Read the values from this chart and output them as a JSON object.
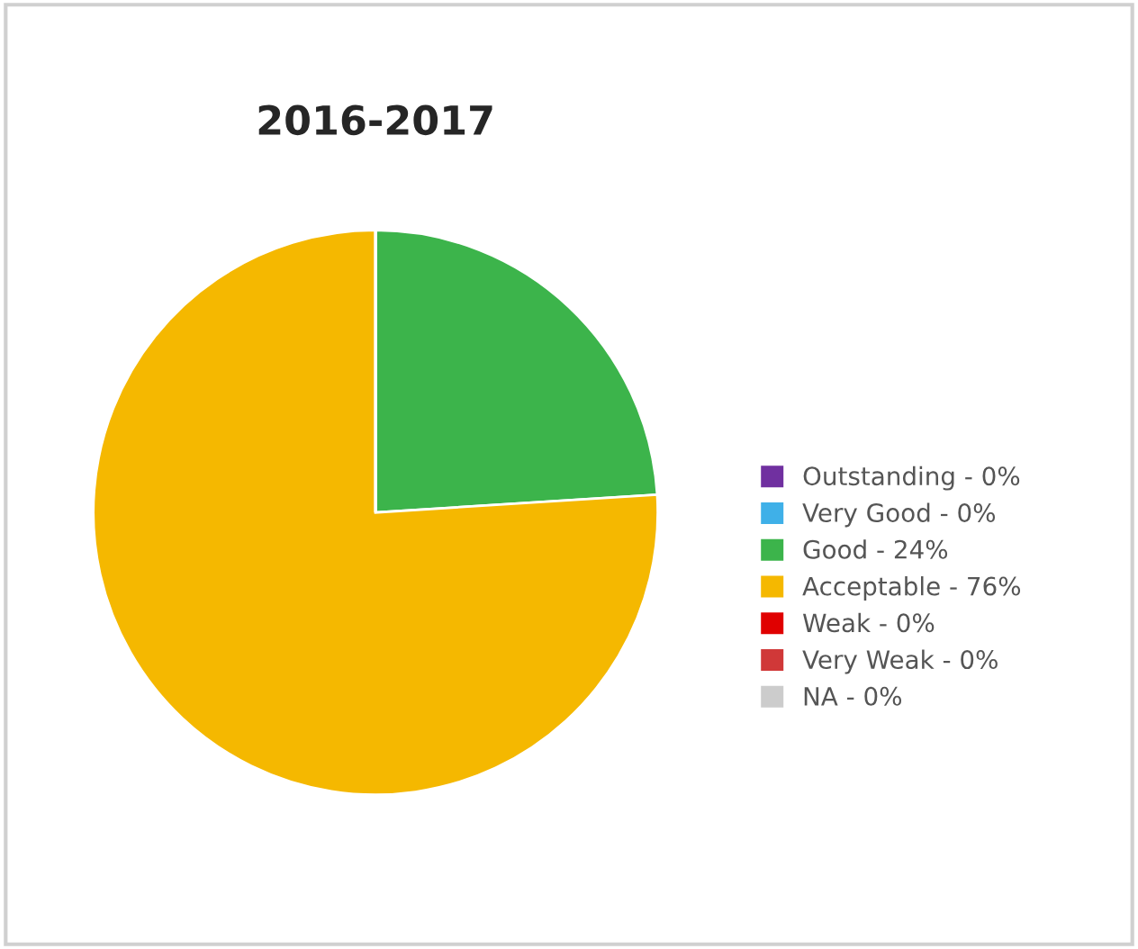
{
  "chart_data": {
    "type": "pie",
    "title": "2016-2017",
    "categories": [
      "Outstanding - 0%",
      "Very Good - 0%",
      "Good - 24%",
      "Acceptable - 76%",
      "Weak - 0%",
      "Very Weak - 0%",
      "NA - 0%"
    ],
    "values": [
      0,
      0,
      24,
      76,
      0,
      0,
      0
    ],
    "colors": [
      "#7030a0",
      "#3fb0e8",
      "#3cb44b",
      "#f5b800",
      "#e00000",
      "#d03838",
      "#cccccc"
    ],
    "legend": "right"
  }
}
